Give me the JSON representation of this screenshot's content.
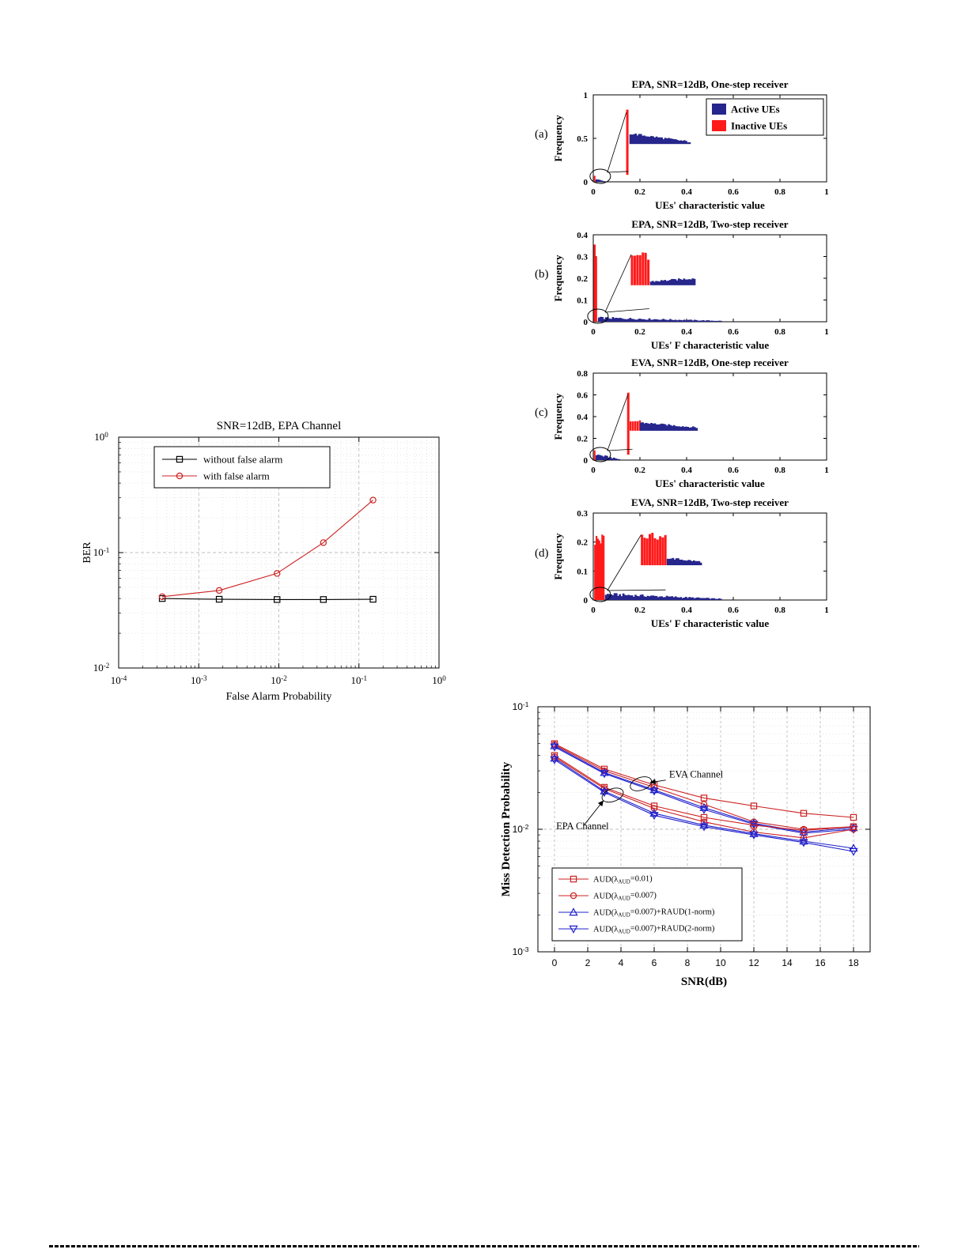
{
  "figure_labels": [
    "(a)",
    "(b)",
    "(c)",
    "(d)"
  ],
  "colors": {
    "active_blue": "#26268c",
    "inactive_red": "#ff1a1a",
    "series_red": "#cc2020",
    "series_blue": "#2020cc",
    "black": "#000000"
  },
  "chart_data": {
    "histograms": [
      {
        "type": "histogram",
        "title": "EPA, SNR=12dB, One-step receiver",
        "ylabel": "Frequency",
        "xlabel": "UEs' characteristic value",
        "ylim": 1,
        "yticks": [
          0,
          0.5,
          1
        ],
        "xticks": [
          0,
          0.2,
          0.4,
          0.6,
          0.8,
          1
        ],
        "legend": [
          {
            "label": "Active UEs",
            "color": "active_blue"
          },
          {
            "label": "Inactive UEs",
            "color": "inactive_red"
          }
        ],
        "segments": [
          {
            "type": "spike",
            "x": 0.006,
            "h": 0.07,
            "color": "red",
            "w": 2
          },
          {
            "type": "block",
            "x0": 0.01,
            "x1": 0.05,
            "h0": 0.03,
            "h1": 0.01,
            "color": "blue",
            "j": 0.5
          },
          {
            "type": "spike",
            "x": 0.146,
            "h": 0.83,
            "y0": 0.08,
            "color": "red",
            "w": 3
          },
          {
            "type": "block",
            "x0": 0.155,
            "x1": 0.42,
            "h0": 0.555,
            "h1": 0.46,
            "y0": 0.435,
            "color": "blue",
            "j": 0.05
          }
        ],
        "ellipse": {
          "cx": 0.03
        },
        "connectors": [
          [
            0.142,
            0.8
          ],
          [
            0.15,
            0.12
          ]
        ]
      },
      {
        "type": "histogram",
        "title": "EPA, SNR=12dB, Two-step receiver",
        "ylabel": "Frequency",
        "xlabel": "UEs' F characteristic value",
        "ylim": 0.4,
        "yticks": [
          0,
          0.1,
          0.2,
          0.3,
          0.4
        ],
        "xticks": [
          0,
          0.2,
          0.4,
          0.6,
          0.8,
          1
        ],
        "segments": [
          {
            "type": "spike",
            "x": 0.006,
            "h": 0.355,
            "color": "red",
            "w": 2.5
          },
          {
            "type": "spike",
            "x": 0.013,
            "h": 0.3,
            "color": "red",
            "w": 2
          },
          {
            "type": "block",
            "x0": 0.02,
            "x1": 0.55,
            "h0": 0.018,
            "h1": 0.004,
            "color": "blue",
            "j": 0.6
          },
          {
            "type": "comb",
            "x0": 0.165,
            "x1": 0.235,
            "n": 7,
            "h": 0.31,
            "y0": 0.168,
            "color": "red",
            "w": 3
          },
          {
            "type": "block",
            "x0": 0.243,
            "x1": 0.44,
            "h0": 0.185,
            "h1": 0.2,
            "y0": 0.168,
            "color": "blue",
            "j": 0.05
          }
        ],
        "ellipse": {
          "cx": 0.02
        },
        "connectors": [
          [
            0.163,
            0.31
          ],
          [
            0.24,
            0.06
          ]
        ]
      },
      {
        "type": "histogram",
        "title": "EVA, SNR=12dB, One-step receiver",
        "ylabel": "Frequency",
        "xlabel": "UEs' characteristic value",
        "ylim": 0.8,
        "yticks": [
          0,
          0.2,
          0.4,
          0.6,
          0.8
        ],
        "xticks": [
          0,
          0.2,
          0.4,
          0.6,
          0.8,
          1
        ],
        "segments": [
          {
            "type": "spike",
            "x": 0.006,
            "h": 0.09,
            "color": "red",
            "w": 2
          },
          {
            "type": "block",
            "x0": 0.01,
            "x1": 0.12,
            "h0": 0.05,
            "h1": 0.008,
            "color": "blue",
            "j": 0.6
          },
          {
            "type": "spike",
            "x": 0.15,
            "h": 0.62,
            "y0": 0.05,
            "color": "red",
            "w": 3
          },
          {
            "type": "comb",
            "x0": 0.16,
            "x1": 0.2,
            "n": 5,
            "h": 0.36,
            "y0": 0.27,
            "color": "red",
            "w": 2.5
          },
          {
            "type": "block",
            "x0": 0.2,
            "x1": 0.45,
            "h0": 0.345,
            "h1": 0.3,
            "y0": 0.27,
            "color": "blue",
            "j": 0.05
          }
        ],
        "ellipse": {
          "cx": 0.03
        },
        "connectors": [
          [
            0.148,
            0.6
          ],
          [
            0.168,
            0.1
          ]
        ]
      },
      {
        "type": "histogram",
        "title": "EVA, SNR=12dB, Two-step receiver",
        "ylabel": "Frequency",
        "xlabel": "UEs' F characteristic value",
        "ylim": 0.3,
        "yticks": [
          0,
          0.1,
          0.2,
          0.3
        ],
        "xticks": [
          0,
          0.2,
          0.4,
          0.6,
          0.8,
          1
        ],
        "segments": [
          {
            "type": "comb",
            "x0": 0.008,
            "x1": 0.045,
            "n": 7,
            "h": 0.22,
            "color": "red",
            "w": 2.2
          },
          {
            "type": "block",
            "x0": 0.05,
            "x1": 0.55,
            "h0": 0.02,
            "h1": 0.004,
            "color": "blue",
            "j": 0.6
          },
          {
            "type": "comb",
            "x0": 0.208,
            "x1": 0.308,
            "n": 10,
            "h": 0.225,
            "y0": 0.12,
            "color": "red",
            "w": 3
          },
          {
            "type": "block",
            "x0": 0.315,
            "x1": 0.47,
            "h0": 0.145,
            "h1": 0.132,
            "y0": 0.12,
            "color": "blue",
            "j": 0.05
          }
        ],
        "ellipse": {
          "cx": 0.03
        },
        "connectors": [
          [
            0.205,
            0.225
          ],
          [
            0.31,
            0.035
          ]
        ]
      }
    ],
    "ber_chart": {
      "type": "line",
      "title": "SNR=12dB, EPA Channel",
      "xlabel": "False Alarm Probability",
      "ylabel": "BER",
      "xscale": "log",
      "yscale": "log",
      "xlog": [
        -4,
        0
      ],
      "ylog": [
        -2,
        0
      ],
      "x": [
        0.00035,
        0.0018,
        0.0095,
        0.036,
        0.15
      ],
      "series": [
        {
          "name": "without false alarm",
          "color": "black",
          "marker": "s",
          "y": [
            0.04,
            0.0394,
            0.0392,
            0.0392,
            0.0394
          ]
        },
        {
          "name": "with false alarm",
          "color": "series_red",
          "marker": "o",
          "y": [
            0.0415,
            0.047,
            0.066,
            0.122,
            0.285
          ]
        }
      ],
      "legend": [
        {
          "label": "without false alarm",
          "color": "black",
          "marker": "s"
        },
        {
          "label": "with false alarm",
          "color": "series_red",
          "marker": "o"
        }
      ]
    },
    "md_chart": {
      "type": "line",
      "xlabel": "SNR(dB)",
      "ylabel": "Miss Detection Probability",
      "xscale": "linear",
      "yscale": "log",
      "xlim": [
        -1,
        19
      ],
      "xticks": [
        0,
        2,
        4,
        6,
        8,
        10,
        12,
        14,
        16,
        18
      ],
      "ylog": [
        -3,
        -1
      ],
      "x": [
        0,
        3,
        6,
        9,
        12,
        15,
        18
      ],
      "series": [
        {
          "name": "AUD(0.01) EVA",
          "color": "series_red",
          "marker": "s",
          "values": [
            0.05,
            0.031,
            0.023,
            0.018,
            0.0155,
            0.0135,
            0.0125
          ]
        },
        {
          "name": "AUD(0.007) EVA",
          "color": "series_red",
          "marker": "o",
          "values": [
            0.049,
            0.03,
            0.022,
            0.016,
            0.0115,
            0.01,
            0.0105
          ]
        },
        {
          "name": "AUD(0.007)+RAUD(1-norm) EVA",
          "color": "series_blue",
          "marker": "^",
          "values": [
            0.048,
            0.029,
            0.021,
            0.015,
            0.0112,
            0.0095,
            0.0103
          ]
        },
        {
          "name": "AUD(0.007)+RAUD(2-norm) EVA",
          "color": "series_blue",
          "marker": "v",
          "values": [
            0.047,
            0.0285,
            0.0205,
            0.0145,
            0.011,
            0.0093,
            0.01
          ]
        },
        {
          "name": "AUD(0.01) EPA",
          "color": "series_red",
          "marker": "s",
          "values": [
            0.04,
            0.022,
            0.0155,
            0.0125,
            0.0108,
            0.0098,
            0.0105
          ]
        },
        {
          "name": "AUD(0.007) EPA",
          "color": "series_red",
          "marker": "o",
          "values": [
            0.039,
            0.0215,
            0.0148,
            0.0115,
            0.0095,
            0.0085,
            0.01
          ]
        },
        {
          "name": "AUD(0.007)+RAUD(1-norm) EPA",
          "color": "series_blue",
          "marker": "^",
          "values": [
            0.038,
            0.0205,
            0.0135,
            0.0108,
            0.0092,
            0.008,
            0.007
          ]
        },
        {
          "name": "AUD(0.007)+RAUD(2-norm) EPA",
          "color": "series_blue",
          "marker": "v",
          "values": [
            0.037,
            0.02,
            0.013,
            0.0105,
            0.009,
            0.0078,
            0.0066
          ]
        }
      ],
      "legend": [
        {
          "pre": "AUD(λ",
          "sub": "AUD",
          "post": "=0.01)",
          "color": "series_red",
          "marker": "s"
        },
        {
          "pre": "AUD(λ",
          "sub": "AUD",
          "post": "=0.007)",
          "color": "series_red",
          "marker": "o"
        },
        {
          "pre": "AUD(λ",
          "sub": "AUD",
          "post": "=0.007)+RAUD(1-norm)",
          "color": "series_blue",
          "marker": "^"
        },
        {
          "pre": "AUD(λ",
          "sub": "AUD",
          "post": "=0.007)+RAUD(2-norm)",
          "color": "series_blue",
          "marker": "v"
        }
      ],
      "annotations": [
        {
          "text": "EVA Channel",
          "text_x": 6.9,
          "text_y": 0.0265,
          "ell_x": 5.2,
          "ell_y": 0.0235,
          "arrow": [
            [
              6.7,
              0.0252
            ],
            [
              5.75,
              0.0241
            ]
          ]
        },
        {
          "text": "EPA Channel",
          "text_x": 0.1,
          "text_y": 0.01,
          "ell_x": 3.5,
          "ell_y": 0.019,
          "arrow": [
            [
              1.75,
              0.0107
            ],
            [
              2.95,
              0.0172
            ]
          ]
        }
      ]
    }
  }
}
